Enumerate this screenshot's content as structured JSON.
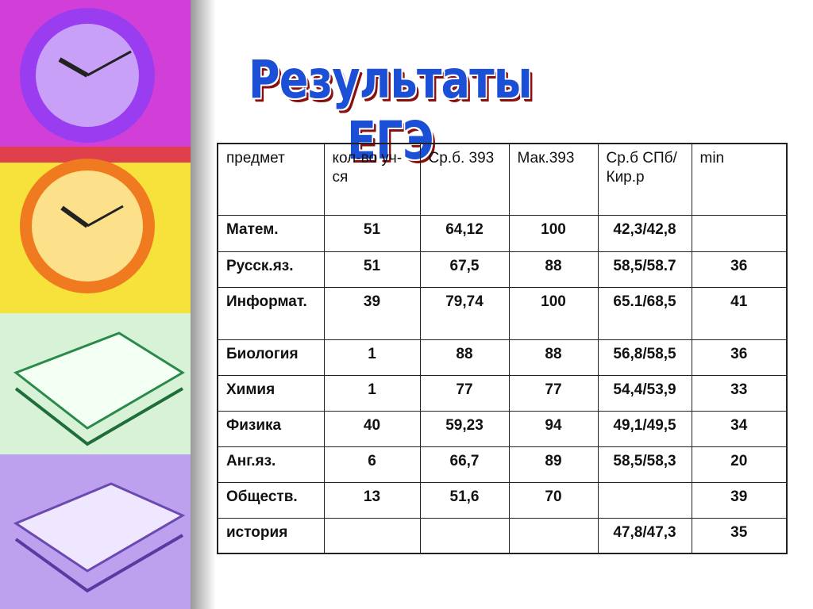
{
  "title": "Результаты ЕГЭ",
  "table": {
    "header": [
      "предмет",
      "кол-во уч-ся",
      "Ср.б. 393",
      "Мак.393",
      "Ср.б СПб/Кир.р",
      "min"
    ],
    "rows": [
      [
        "Матем.",
        "51",
        "64,12",
        "100",
        "42,3/42,8",
        null
      ],
      [
        "Русск.яз.",
        "51",
        "67,5",
        "88",
        "58,5/58.7",
        "36"
      ],
      [
        "Информат.",
        "39",
        "79,74",
        "100",
        "65.1/68,5",
        "41"
      ],
      [
        "Биология",
        "1",
        "88",
        "88",
        "56,8/58,5",
        "36"
      ],
      [
        "Химия",
        "1",
        "77",
        "77",
        "54,4/53,9",
        "33"
      ],
      [
        "Физика",
        "40",
        "59,23",
        "94",
        "49,1/49,5",
        "34"
      ],
      [
        "Анг.яз.",
        "6",
        "66,7",
        "89",
        "58,5/58,3",
        "20"
      ],
      [
        "Обществ.",
        "13",
        "51,6",
        "70",
        null,
        "39"
      ],
      [
        "история",
        null,
        null,
        null,
        "47,8/47,3",
        "35"
      ]
    ]
  }
}
